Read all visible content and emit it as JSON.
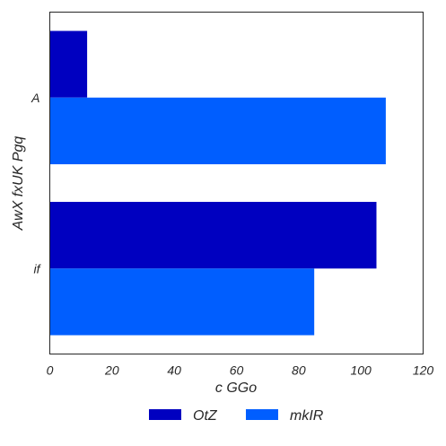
{
  "chart_data": {
    "type": "bar",
    "orientation": "horizontal",
    "categories": [
      "A",
      "if"
    ],
    "series": [
      {
        "name": "OtZ",
        "values": [
          12,
          105
        ]
      },
      {
        "name": "mkIR",
        "values": [
          108,
          85
        ]
      }
    ],
    "xlabel": "c GGo",
    "ylabel": "AwX fxUK Pgq",
    "xlim": [
      0,
      120
    ],
    "xticks": [
      0,
      20,
      40,
      60,
      80,
      100,
      120
    ],
    "grid": false,
    "legend_position": "bottom-center",
    "colors": {
      "OtZ": "#0000c0",
      "mkIR": "#005eff"
    }
  }
}
